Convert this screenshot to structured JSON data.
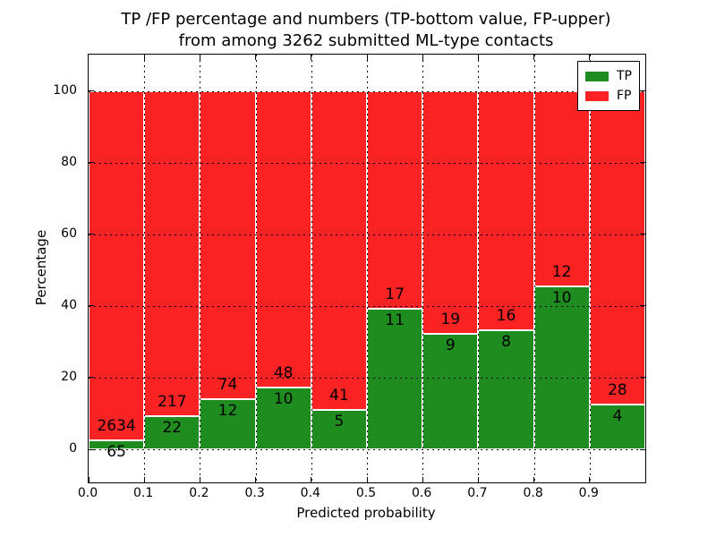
{
  "chart_data": {
    "type": "bar",
    "stacked": true,
    "title_lines": [
      "TP /FP percentage and numbers (TP-bottom value, FP-upper)",
      "from among 3262 submitted ML-type contacts"
    ],
    "xlabel": "Predicted probability",
    "ylabel": "Percentage",
    "total_contacts": 3262,
    "categories": [
      "0.0-0.1",
      "0.1-0.2",
      "0.2-0.3",
      "0.3-0.4",
      "0.4-0.5",
      "0.5-0.6",
      "0.6-0.7",
      "0.7-0.8",
      "0.8-0.9",
      "0.9-1.0"
    ],
    "series": [
      {
        "name": "TP",
        "color": "#1f8c1f",
        "counts": [
          65,
          22,
          12,
          10,
          5,
          11,
          9,
          8,
          10,
          4
        ]
      },
      {
        "name": "FP",
        "color": "#fa2323",
        "counts": [
          2634,
          217,
          74,
          48,
          41,
          17,
          19,
          16,
          12,
          28
        ]
      }
    ],
    "tp_percent": [
      2.4,
      9.2,
      14.0,
      17.2,
      10.9,
      39.3,
      32.1,
      33.3,
      45.5,
      12.5
    ],
    "bar_total_percent": 100,
    "xticks": [
      "0.0",
      "0.1",
      "0.2",
      "0.3",
      "0.4",
      "0.5",
      "0.6",
      "0.7",
      "0.8",
      "0.9"
    ],
    "yticks": [
      0,
      20,
      40,
      60,
      80,
      100
    ],
    "xlim": [
      0.0,
      1.0
    ],
    "ylim": [
      -9.3,
      110.2
    ],
    "grid": true,
    "legend_position": "upper right",
    "label_rule": "TP count below green/red boundary, FP count above"
  }
}
